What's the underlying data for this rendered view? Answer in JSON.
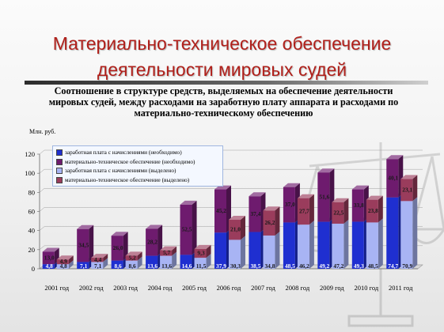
{
  "slide": {
    "title_line1": "Материально-техническое обеспечение",
    "title_line2": "деятельности мировых судей",
    "subtitle_line1": "Соотношение в структуре средств, выделяемых на обеспечение деятельности",
    "subtitle_line2": "мировых судей, между расходами на заработную плату аппарата и расходами по",
    "subtitle_line3": "материально-техническому обеспечению"
  },
  "chart_data": {
    "type": "bar",
    "stacked": true,
    "unit_label": "Млн. руб.",
    "ylim": [
      0,
      120
    ],
    "yticks": [
      0,
      20,
      40,
      60,
      80,
      100,
      120
    ],
    "grid": true,
    "legend_placement": "top-left",
    "categories": [
      "2001 год",
      "2002 год",
      "2003 год",
      "2004 год",
      "2005 год",
      "2006 год",
      "2007 год",
      "2008 год",
      "2009 год",
      "2010 год",
      "2011 год"
    ],
    "stacks": [
      {
        "name": "необходимо",
        "series": [
          {
            "name": "заработная плата с начислениями (необходимо)",
            "color": "#1f2fd0",
            "values": [
              4.8,
              7.1,
              8.6,
              13.6,
              14.6,
              37.9,
              38.5,
              48.5,
              49.2,
              49.3,
              74.7
            ],
            "labels": [
              "4,8",
              "7,1",
              "8,6",
              "13,6",
              "14,6",
              "37,9",
              "38,5",
              "48,5",
              "49,2",
              "49,3",
              "74,7"
            ]
          },
          {
            "name": "материально-техническое обеспечение (необходимо)",
            "color": "#6e1b6e",
            "values": [
              13.0,
              34.5,
              26.0,
              28.2,
              52.5,
              45.2,
              37.4,
              37.0,
              51.6,
              33.8,
              40.1
            ],
            "labels": [
              "13,0",
              "34,5",
              "26,0",
              "28,2",
              "52,5",
              "45,2",
              "37,4",
              "37,0",
              "51,6",
              "33,8",
              "40,1"
            ]
          }
        ]
      },
      {
        "name": "выделено",
        "series": [
          {
            "name": "заработная плата с начислениями (выделено)",
            "color": "#a8b4f4",
            "values": [
              4.8,
              7.1,
              8.6,
              13.6,
              11.5,
              30.3,
              34.8,
              46.2,
              47.2,
              48.5,
              70.9
            ],
            "labels": [
              "4,8",
              "7,1",
              "8,6",
              "13,6",
              "11,5",
              "30,3",
              "34,8",
              "46,2",
              "47,2",
              "48,5",
              "70,9"
            ]
          },
          {
            "name": "материально-техническое обеспечение (выделено)",
            "color": "#9a3c5c",
            "values": [
              4.9,
              4.4,
              5.2,
              5.7,
              9.3,
              21.0,
              26.2,
              27.7,
              22.5,
              23.8,
              23.1
            ],
            "labels": [
              "4,9",
              "4,4",
              "5,2",
              "5,7",
              "9,3",
              "21,0",
              "26,2",
              "27,7",
              "22,5",
              "23,8",
              "23,1"
            ]
          }
        ]
      }
    ]
  }
}
